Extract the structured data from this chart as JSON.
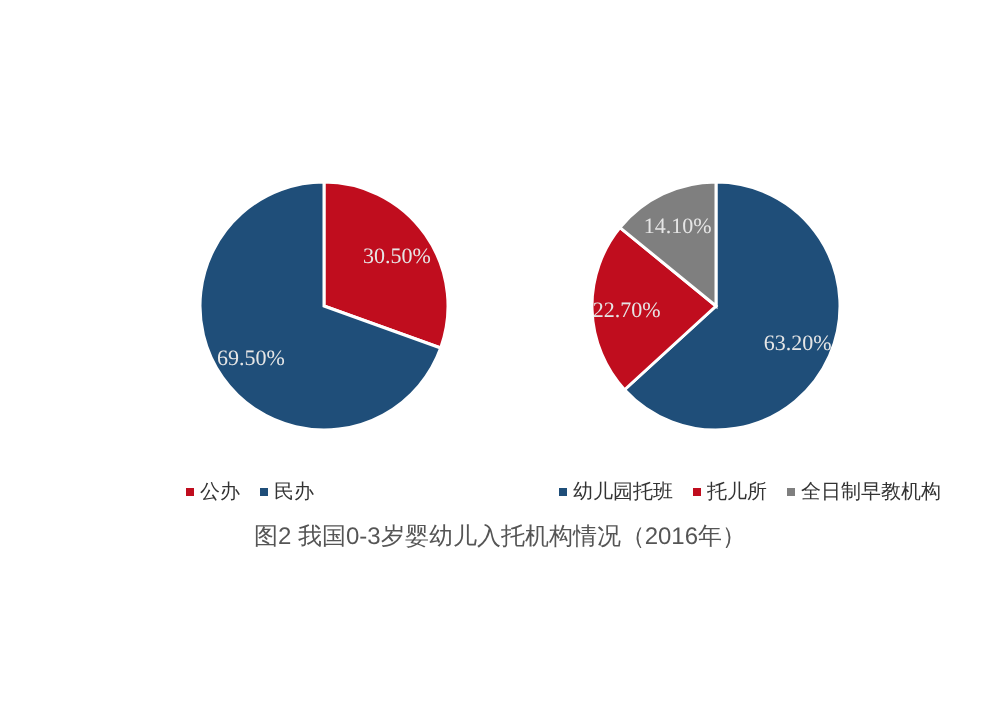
{
  "chart_data": [
    {
      "type": "pie",
      "categories": [
        "公办",
        "民办"
      ],
      "values": [
        30.5,
        69.5
      ],
      "colors": [
        "#c00d1e",
        "#1f4e79"
      ],
      "value_labels": [
        "30.50%",
        "69.50%"
      ],
      "legend": "bottom",
      "annotations": [
        "图2  我国0-3岁婴幼儿入托机构情况（2016年）"
      ]
    },
    {
      "type": "pie",
      "categories": [
        "幼儿园托班",
        "托儿所",
        "全日制早教机构"
      ],
      "values": [
        63.2,
        22.7,
        14.1
      ],
      "colors": [
        "#1f4e79",
        "#c00d1e",
        "#7f7f7f"
      ],
      "value_labels": [
        "63.20%",
        "22.70%",
        "14.10%"
      ],
      "legend": "bottom"
    }
  ]
}
